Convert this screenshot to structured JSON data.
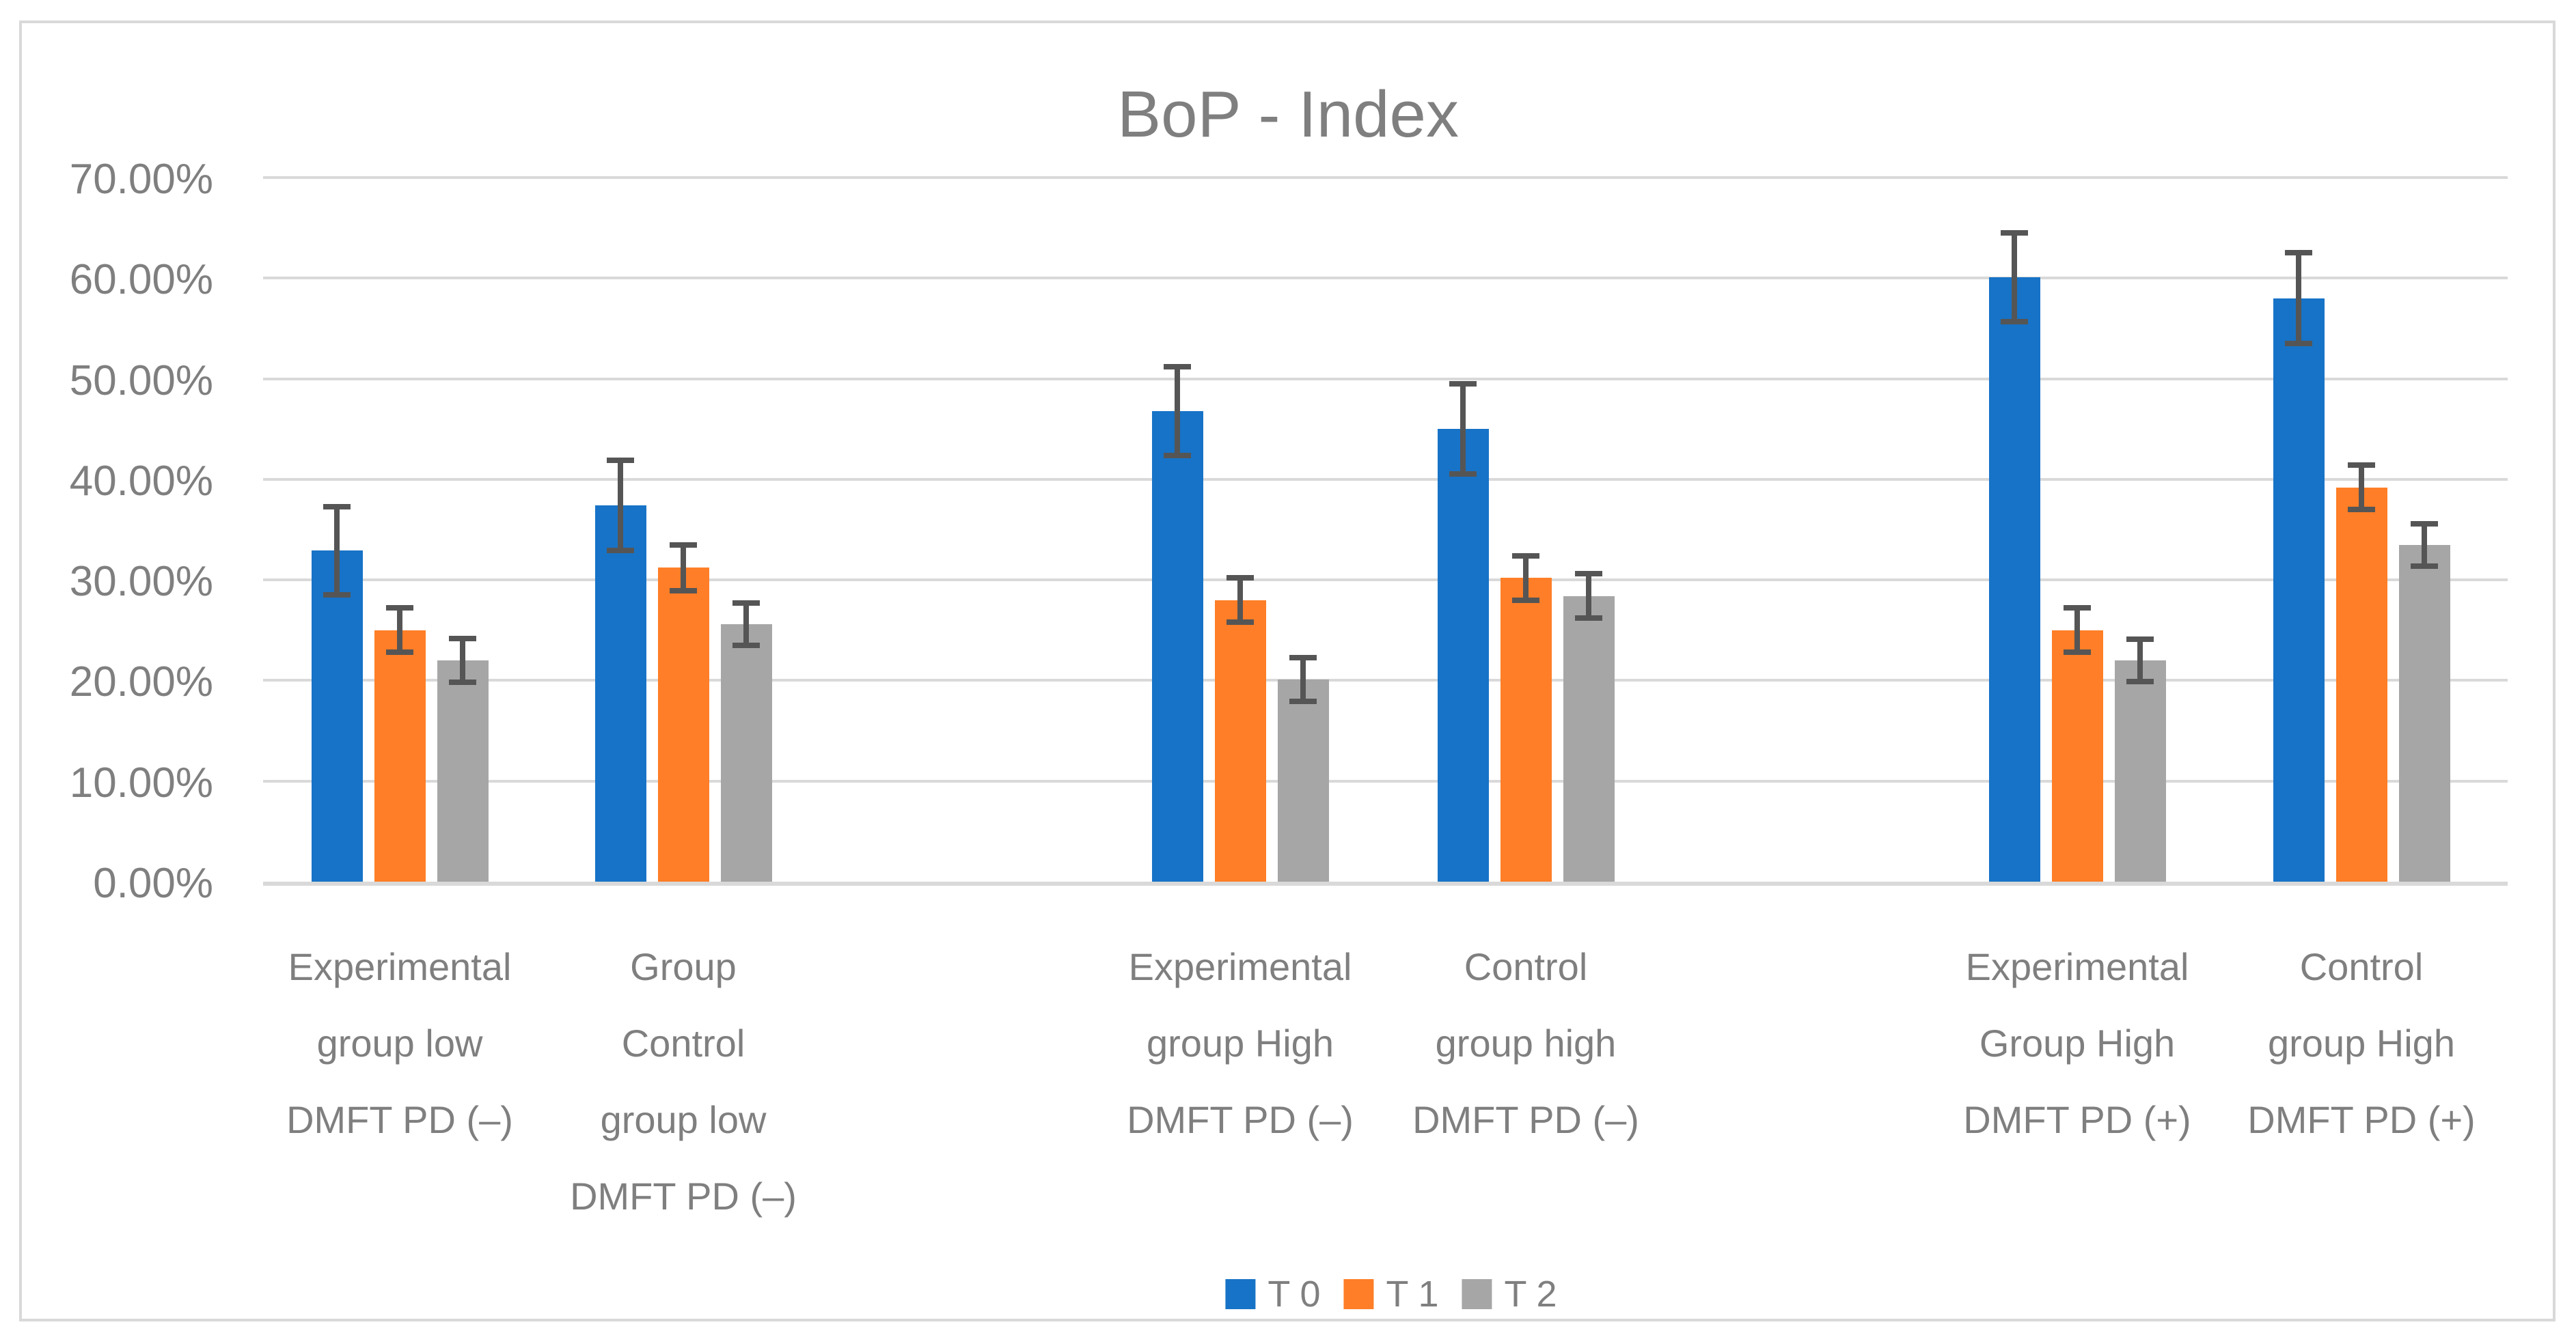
{
  "title": "BoP - Index",
  "colors": {
    "series_t0": "#1773C7",
    "series_t1": "#FF7E27",
    "series_t2": "#A6A6A6",
    "error_bar": "#555555",
    "gridline": "#D9D9D9",
    "axis_line": "#D9D9D9",
    "border": "#D9D9D9",
    "text": "#7F7F7F",
    "background": "#FFFFFF"
  },
  "legend": {
    "items": [
      {
        "label": "T 0",
        "color": "#1773C7"
      },
      {
        "label": "T 1",
        "color": "#FF7E27"
      },
      {
        "label": "T 2",
        "color": "#A6A6A6"
      }
    ],
    "position": "bottom-center"
  },
  "chart_data": {
    "type": "bar",
    "title": "BoP - Index",
    "xlabel": "",
    "ylabel": "",
    "grid": true,
    "legend_position": "bottom",
    "y_axis": {
      "min": 0,
      "max": 70,
      "step": 10,
      "unit": "%",
      "tick_labels": [
        "0.00%",
        "10.00%",
        "20.00%",
        "30.00%",
        "40.00%",
        "50.00%",
        "60.00%",
        "70.00%"
      ]
    },
    "categories": [
      {
        "label": "Experimental group low DMFT PD (–)",
        "lines": [
          "Experimental",
          "group low",
          "DMFT PD (–)"
        ]
      },
      {
        "label": "Group Control group low DMFT PD (–)",
        "lines": [
          "Group",
          "Control",
          "group low",
          "DMFT PD (–)"
        ]
      },
      {
        "label": "Experimental group High DMFT PD (–)",
        "lines": [
          "Experimental",
          "group High",
          "DMFT PD (–)"
        ]
      },
      {
        "label": "Control group high DMFT PD (–)",
        "lines": [
          "Control",
          "group high",
          "DMFT PD (–)"
        ]
      },
      {
        "label": "Experimental Group High DMFT PD (+)",
        "lines": [
          "Experimental",
          "Group High",
          "DMFT PD (+)"
        ]
      },
      {
        "label": "Control group High DMFT PD (+)",
        "lines": [
          "Control",
          "group High",
          "DMFT PD (+)"
        ]
      }
    ],
    "series": [
      {
        "name": "T 0",
        "color": "#1773C7",
        "values": [
          32.9,
          37.4,
          46.8,
          45.0,
          60.1,
          58.0
        ],
        "errors": [
          4.4,
          4.5,
          4.4,
          4.5,
          4.4,
          4.5
        ]
      },
      {
        "name": "T 1",
        "color": "#FF7E27",
        "values": [
          25.0,
          31.2,
          28.0,
          30.2,
          25.0,
          39.2
        ],
        "errors": [
          2.2,
          2.3,
          2.2,
          2.2,
          2.2,
          2.2
        ]
      },
      {
        "name": "T 2",
        "color": "#A6A6A6",
        "values": [
          22.0,
          25.6,
          20.1,
          28.4,
          22.0,
          33.5
        ],
        "errors": [
          2.2,
          2.1,
          2.2,
          2.2,
          2.1,
          2.1
        ]
      }
    ]
  }
}
